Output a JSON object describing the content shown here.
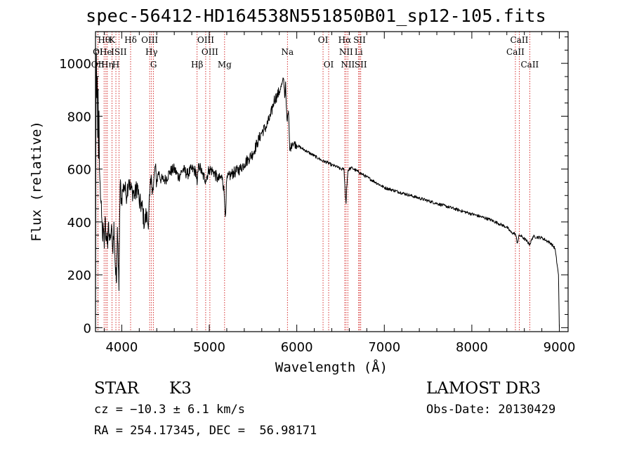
{
  "title": "spec-56412-HD164538N551850B01_sp12-105.fits",
  "info": {
    "class_label": "STAR",
    "subclass": "K3",
    "survey": "LAMOST DR3",
    "cz": "cz = −10.3 ± 6.1 km/s",
    "obs_date": "Obs-Date: 20130429",
    "coords": "RA = 254.17345, DEC =  56.98171"
  },
  "chart_data": {
    "type": "line",
    "xlabel": "Wavelength (Å)",
    "ylabel": "Flux (relative)",
    "xlim": [
      3700,
      9100
    ],
    "ylim": [
      -15,
      1120
    ],
    "xticks": [
      4000,
      5000,
      6000,
      7000,
      8000,
      9000
    ],
    "yticks": [
      0,
      200,
      400,
      600,
      800,
      1000
    ],
    "grid": false,
    "series": [
      {
        "x": [
          3700,
          3705,
          3710,
          3715,
          3720,
          3725,
          3730,
          3735,
          3740,
          3745,
          3750,
          3760,
          3770,
          3780,
          3790,
          3800,
          3810,
          3820,
          3830,
          3840,
          3850,
          3860,
          3870,
          3880,
          3890,
          3900,
          3910,
          3920,
          3930,
          3940,
          3950,
          3960,
          3968,
          3975,
          3985,
          3995,
          4010,
          4030,
          4050,
          4080,
          4100,
          4120,
          4150,
          4180,
          4200,
          4230,
          4260,
          4280,
          4300,
          4320,
          4340,
          4360,
          4380,
          4400,
          4420,
          4450,
          4480,
          4500,
          4550,
          4600,
          4650,
          4700,
          4750,
          4800,
          4850,
          4861,
          4880,
          4920,
          4960,
          5000,
          5050,
          5100,
          5150,
          5170,
          5183,
          5200,
          5250,
          5300,
          5350,
          5400,
          5450,
          5500,
          5550,
          5600,
          5650,
          5700,
          5740,
          5780,
          5810,
          5830,
          5850,
          5862,
          5872,
          5880,
          5892,
          5905,
          5920,
          5950,
          6000,
          6050,
          6100,
          6150,
          6200,
          6250,
          6300,
          6350,
          6400,
          6450,
          6500,
          6540,
          6555,
          6563,
          6570,
          6585,
          6620,
          6650,
          6700,
          6750,
          6800,
          6900,
          7000,
          7100,
          7200,
          7300,
          7400,
          7500,
          7600,
          7700,
          7800,
          7900,
          8000,
          8100,
          8200,
          8300,
          8400,
          8450,
          8498,
          8520,
          8542,
          8570,
          8620,
          8662,
          8700,
          8800,
          8900,
          8950,
          8990,
          9000
        ],
        "y": [
          30,
          800,
          1040,
          870,
          950,
          720,
          900,
          640,
          820,
          600,
          560,
          480,
          420,
          340,
          380,
          300,
          420,
          330,
          360,
          300,
          400,
          330,
          350,
          370,
          330,
          280,
          400,
          300,
          200,
          170,
          380,
          240,
          140,
          410,
          560,
          470,
          520,
          540,
          500,
          560,
          520,
          520,
          500,
          540,
          470,
          460,
          390,
          430,
          390,
          500,
          560,
          520,
          610,
          550,
          590,
          560,
          560,
          560,
          590,
          600,
          570,
          600,
          580,
          600,
          590,
          540,
          620,
          580,
          560,
          600,
          590,
          560,
          570,
          510,
          420,
          560,
          580,
          590,
          600,
          620,
          640,
          660,
          700,
          740,
          760,
          800,
          860,
          880,
          900,
          920,
          940,
          870,
          930,
          840,
          780,
          820,
          670,
          700,
          690,
          680,
          670,
          660,
          650,
          640,
          630,
          625,
          615,
          610,
          600,
          600,
          500,
          470,
          530,
          595,
          605,
          600,
          590,
          580,
          570,
          550,
          530,
          520,
          510,
          500,
          490,
          480,
          470,
          460,
          450,
          440,
          430,
          420,
          410,
          395,
          380,
          360,
          355,
          320,
          350,
          345,
          330,
          315,
          345,
          340,
          320,
          300,
          200,
          0
        ]
      }
    ],
    "lines": [
      {
        "label": "OI",
        "wl": 3727,
        "row": 1
      },
      {
        "label": "OII",
        "wl": 3727,
        "row": 2
      },
      {
        "label": "Hθ",
        "wl": 3798,
        "row": 0
      },
      {
        "label": "He",
        "wl": 3819,
        "row": 1
      },
      {
        "label": "Hη",
        "wl": 3835,
        "row": 2
      },
      {
        "label": "K",
        "wl": 3889,
        "row": 0
      },
      {
        "label": "H",
        "wl": 3933,
        "row": 2
      },
      {
        "label": "ISII",
        "wl": 3968,
        "row": 1
      },
      {
        "label": "Hδ",
        "wl": 4101,
        "row": 0
      },
      {
        "label": "OIII",
        "wl": 4319,
        "row": 0
      },
      {
        "label": "Hγ",
        "wl": 4340,
        "row": 1
      },
      {
        "label": "G",
        "wl": 4363,
        "row": 2
      },
      {
        "label": "Hβ",
        "wl": 4861,
        "row": 2
      },
      {
        "label": "OIII",
        "wl": 4959,
        "row": 0
      },
      {
        "label": "OIII",
        "wl": 5007,
        "row": 1
      },
      {
        "label": "Mg",
        "wl": 5175,
        "row": 2
      },
      {
        "label": "Na",
        "wl": 5893,
        "row": 1
      },
      {
        "label": "OI",
        "wl": 6300,
        "row": 0
      },
      {
        "label": "OI",
        "wl": 6364,
        "row": 2
      },
      {
        "label": "Hα",
        "wl": 6548,
        "row": 0
      },
      {
        "label": "NII",
        "wl": 6563,
        "row": 1
      },
      {
        "label": "NII",
        "wl": 6583,
        "row": 2
      },
      {
        "label": "SII",
        "wl": 6717,
        "row": 0
      },
      {
        "label": "Li",
        "wl": 6707,
        "row": 1
      },
      {
        "label": "SII",
        "wl": 6731,
        "row": 2
      },
      {
        "label": "CaII",
        "wl": 8498,
        "row": 1
      },
      {
        "label": "CaII",
        "wl": 8542,
        "row": 0
      },
      {
        "label": "CaII",
        "wl": 8662,
        "row": 2
      }
    ],
    "line_color": "#cc0000"
  }
}
